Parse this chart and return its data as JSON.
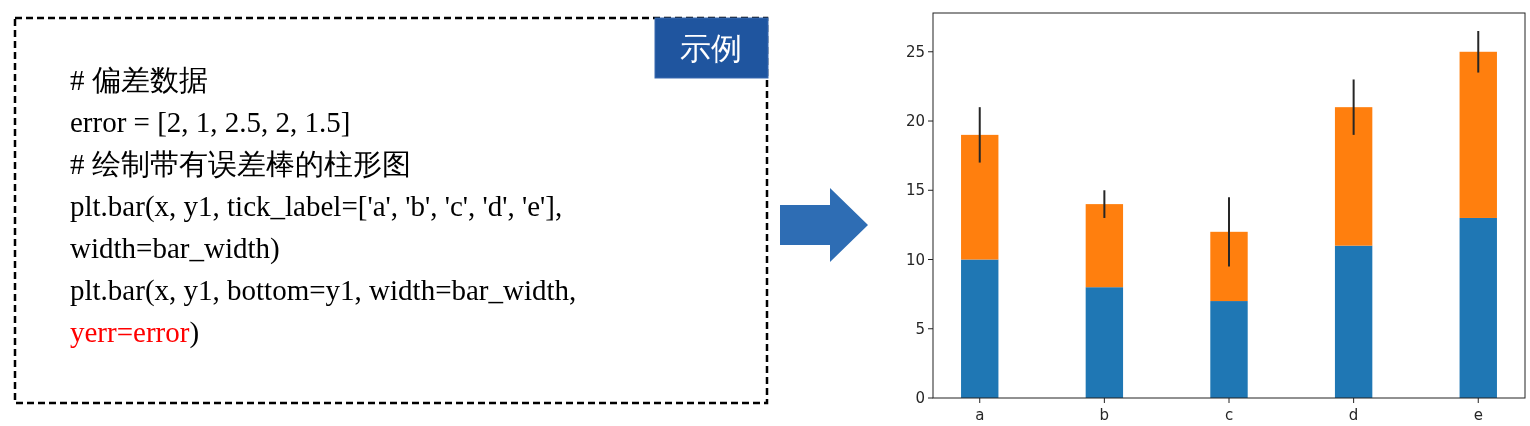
{
  "chart_data": [
    {
      "type": "other",
      "title": "示例",
      "annotations": [
        "# 偏差数据",
        "error = [2, 1, 2.5, 2, 1.5]",
        "# 绘制带有误差棒的柱形图",
        "plt.bar(x, y1, tick_label=['a', 'b', 'c', 'd', 'e'],",
        "width=bar_width)",
        "plt.bar(x, y1, bottom=y1, width=bar_width,",
        "yerr=error",
        ")"
      ]
    },
    {
      "type": "bar",
      "stacked": true,
      "categories": [
        "a",
        "b",
        "c",
        "d",
        "e"
      ],
      "series": [
        {
          "color": "#1f77b4",
          "values": [
            10,
            8,
            7,
            11,
            13
          ]
        },
        {
          "color": "#ff7f0e",
          "values": [
            9,
            6,
            5,
            10,
            12
          ],
          "errors": [
            2,
            1,
            2.5,
            2,
            1.5
          ]
        }
      ],
      "ylim": [
        0,
        27.8
      ],
      "yticks": [
        0,
        5,
        10,
        15,
        20,
        25
      ],
      "grid": false
    }
  ]
}
